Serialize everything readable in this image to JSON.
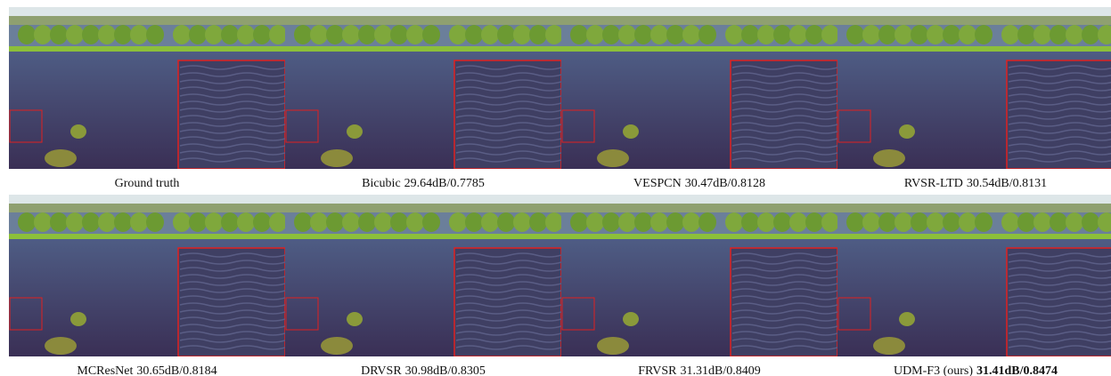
{
  "panels": [
    {
      "method": "Ground truth"
    },
    {
      "method": "Bicubic",
      "metrics": "29.64dB/0.7785"
    },
    {
      "method": "VESPCN",
      "metrics": "30.47dB/0.8128"
    },
    {
      "method": "RVSR-LTD",
      "metrics": "30.54dB/0.8131"
    },
    {
      "method": "MCResNet",
      "metrics": "30.65dB/0.8184"
    },
    {
      "method": "DRVSR",
      "metrics": "30.98dB/0.8305"
    },
    {
      "method": "FRVSR",
      "metrics": "31.31dB/0.8409"
    },
    {
      "method": "UDM-F3 (ours)",
      "metrics": "31.41dB/0.8474"
    }
  ]
}
